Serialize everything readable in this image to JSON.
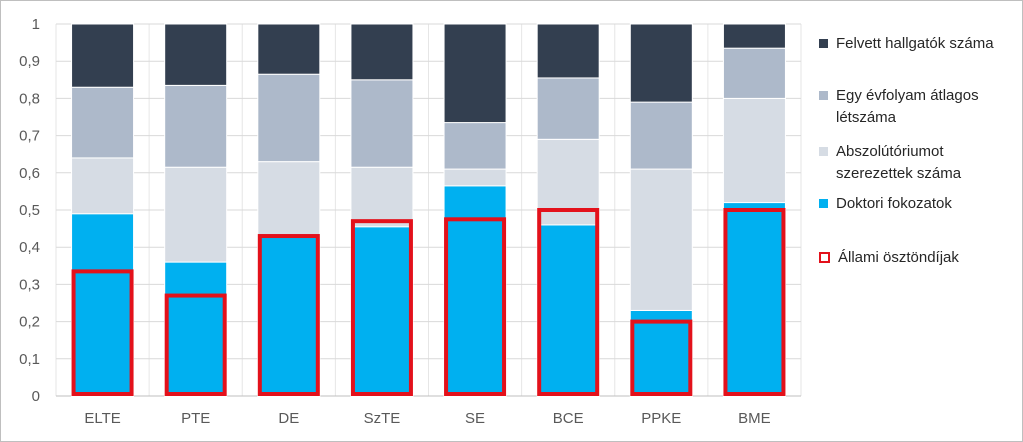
{
  "chart_data": {
    "type": "bar",
    "stacked": true,
    "categories": [
      "ELTE",
      "PTE",
      "DE",
      "SzTE",
      "SE",
      "BCE",
      "PPKE",
      "BME"
    ],
    "y_ticks": [
      "0",
      "0,1",
      "0,2",
      "0,3",
      "0,4",
      "0,5",
      "0,6",
      "0,7",
      "0,8",
      "0,9",
      "1"
    ],
    "ylim": [
      0,
      1
    ],
    "grid": true,
    "legend_position": "right",
    "series": [
      {
        "name": "Doktori fokozatok",
        "color": "#00b0f0",
        "values": [
          0.49,
          0.36,
          0.43,
          0.455,
          0.565,
          0.46,
          0.23,
          0.52
        ]
      },
      {
        "name": "Abszolútóriumot szerezettek száma",
        "color": "#d6dce4",
        "values": [
          0.15,
          0.255,
          0.2,
          0.16,
          0.045,
          0.23,
          0.38,
          0.28
        ]
      },
      {
        "name": "Egy évfolyam átlagos létszáma",
        "color": "#adb9ca",
        "values": [
          0.19,
          0.22,
          0.235,
          0.235,
          0.125,
          0.165,
          0.18,
          0.135
        ]
      },
      {
        "name": "Felvett hallgatók száma",
        "color": "#333f50",
        "values": [
          0.17,
          0.165,
          0.135,
          0.15,
          0.265,
          0.145,
          0.21,
          0.065
        ]
      }
    ],
    "outline_series": {
      "name": "Állami ösztöndíjak",
      "color": "#e3111b",
      "values": [
        0.335,
        0.27,
        0.43,
        0.47,
        0.475,
        0.5,
        0.2,
        0.5
      ]
    }
  },
  "legend": [
    {
      "label": "Felvett hallgatók száma",
      "color": "#333f50"
    },
    {
      "label": "Egy évfolyam átlagos létszáma",
      "color": "#adb9ca"
    },
    {
      "label": "Abszolútóriumot szerezettek száma",
      "color": "#d6dce4"
    },
    {
      "label": "Doktori fokozatok",
      "color": "#00b0f0"
    },
    {
      "label": "Állami ösztöndíjak",
      "color": "#e3111b",
      "outline": true
    }
  ]
}
